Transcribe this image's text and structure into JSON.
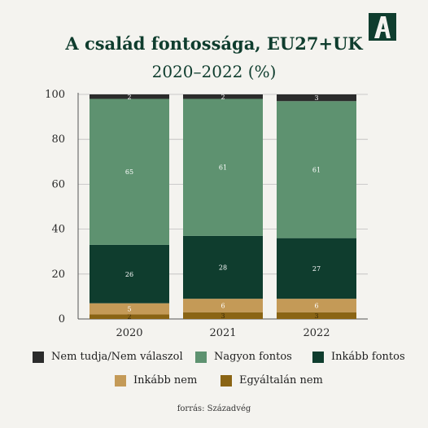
{
  "header": {
    "title": "A család fontossága, EU27+UK",
    "subtitle": "2020–2022 (%)",
    "logo_letter": "A"
  },
  "colors": {
    "accent": "#0f3d2e",
    "grid": "#bdbdbd",
    "axis": "#555555"
  },
  "chart_data": {
    "type": "bar",
    "stacked": true,
    "categories": [
      "2020",
      "2021",
      "2022"
    ],
    "ylim": [
      0,
      100
    ],
    "yticks": [
      0,
      20,
      40,
      60,
      80,
      100
    ],
    "grid": true,
    "series": [
      {
        "name": "Egyáltalán nem",
        "values": [
          2,
          3,
          3
        ],
        "labels": [
          "2",
          "3",
          "3"
        ],
        "color": "#8a6414",
        "label_color": "#3a2a06"
      },
      {
        "name": "Inkább nem",
        "values": [
          5,
          6,
          6
        ],
        "labels": [
          "5",
          "6",
          "6"
        ],
        "color": "#c49a57",
        "label_color": "#ffffff"
      },
      {
        "name": "Inkább fontos",
        "values": [
          26,
          28,
          27
        ],
        "labels": [
          "26",
          "28",
          "27"
        ],
        "color": "#0f3d2e",
        "label_color": "#ffffff"
      },
      {
        "name": "Nagyon fontos",
        "values": [
          65,
          61,
          61
        ],
        "labels": [
          "65",
          "61",
          "61"
        ],
        "color": "#5e9270",
        "label_color": "#ffffff"
      },
      {
        "name": "Nem tudja/Nem válaszol",
        "values": [
          2,
          2,
          3
        ],
        "labels": [
          "2",
          "2",
          "3"
        ],
        "color": "#2b2b2b",
        "label_color": "#ffffff"
      }
    ],
    "legend": [
      {
        "label": "Nem tudja/Nem válaszol",
        "color": "#2b2b2b"
      },
      {
        "label": "Nagyon fontos",
        "color": "#5e9270"
      },
      {
        "label": "Inkább fontos",
        "color": "#0f3d2e"
      },
      {
        "label": "Inkább nem",
        "color": "#c49a57"
      },
      {
        "label": "Egyáltalán nem",
        "color": "#8a6414"
      }
    ]
  },
  "footer": {
    "source": "forrás: Századvég"
  }
}
